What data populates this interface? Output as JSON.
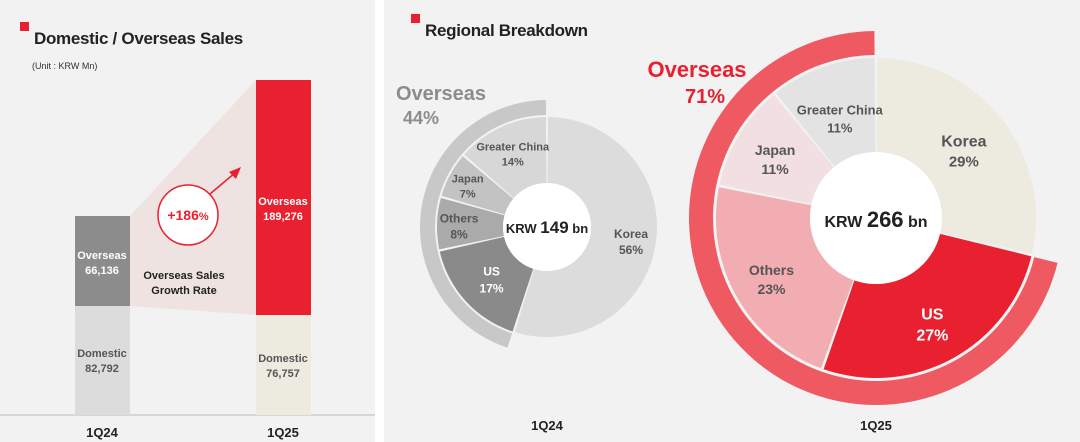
{
  "sales": {
    "title": "Domestic / Overseas Sales",
    "unit": "(Unit : KRW Mn)",
    "growth": {
      "value": "+186",
      "unit": "%",
      "label_line1": "Overseas Sales",
      "label_line2": "Growth Rate"
    }
  },
  "breakdown": {
    "title": "Regional Breakdown"
  },
  "colors": {
    "accent_red": "#e8202f",
    "overseas_gray": "#8c8c8c",
    "domestic_light": "#dcdcdc",
    "domestic_1q25": "#edeae0"
  },
  "chart_data": [
    {
      "type": "bar",
      "title": "Domestic / Overseas Sales",
      "categories": [
        "1Q24",
        "1Q25"
      ],
      "series": [
        {
          "name": "Domestic",
          "values": [
            82792,
            76757
          ],
          "labels": [
            "82,792",
            "76,757"
          ]
        },
        {
          "name": "Overseas",
          "values": [
            66136,
            189276
          ],
          "labels": [
            "66,136",
            "189,276"
          ]
        }
      ],
      "stacked": true
    },
    {
      "type": "pie",
      "category": "1Q24",
      "center_text": {
        "prefix": "KRW ",
        "value": "149",
        "suffix": " bn"
      },
      "outer_ring": {
        "label": "Overseas",
        "pct_label": "44%",
        "value": 44
      },
      "slices": [
        {
          "name": "Korea",
          "value": 56,
          "pct_label": "56%"
        },
        {
          "name": "US",
          "value": 17,
          "pct_label": "17%"
        },
        {
          "name": "Others",
          "value": 8,
          "pct_label": "8%"
        },
        {
          "name": "Japan",
          "value": 7,
          "pct_label": "7%"
        },
        {
          "name": "Greater China",
          "value": 14,
          "pct_label": "14%"
        }
      ]
    },
    {
      "type": "pie",
      "category": "1Q25",
      "center_text": {
        "prefix": "KRW ",
        "value": "266",
        "suffix": " bn"
      },
      "outer_ring": {
        "label": "Overseas",
        "pct_label": "71%",
        "value": 71
      },
      "slices": [
        {
          "name": "Korea",
          "value": 29,
          "pct_label": "29%"
        },
        {
          "name": "US",
          "value": 27,
          "pct_label": "27%"
        },
        {
          "name": "Others",
          "value": 23,
          "pct_label": "23%"
        },
        {
          "name": "Japan",
          "value": 11,
          "pct_label": "11%"
        },
        {
          "name": "Greater China",
          "value": 11,
          "pct_label": "11%"
        }
      ]
    }
  ]
}
